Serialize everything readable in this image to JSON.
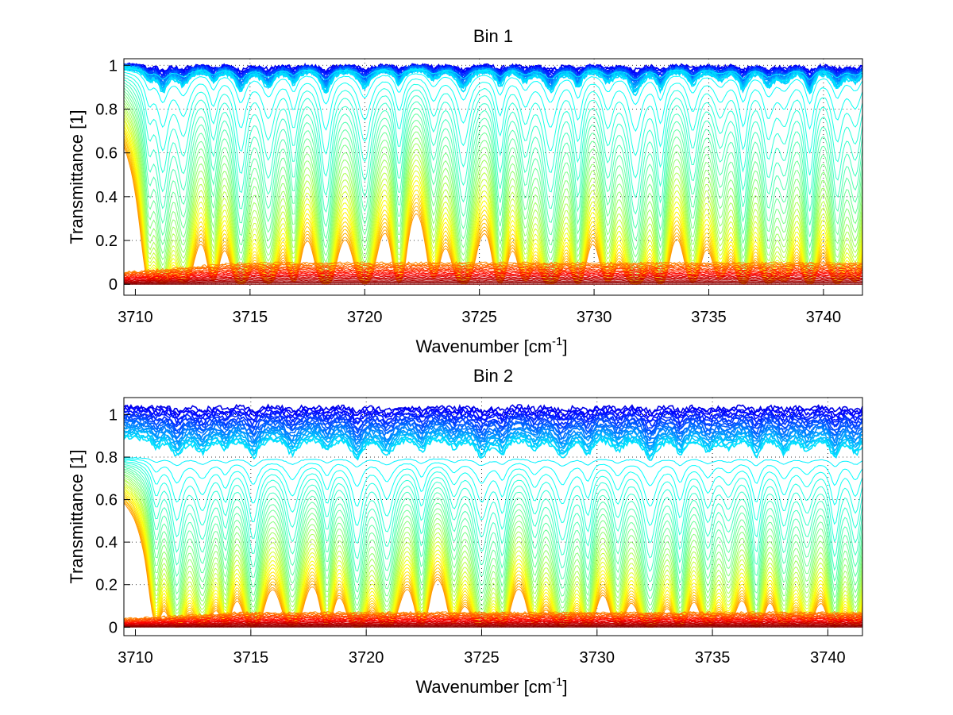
{
  "chart_data": [
    {
      "type": "line",
      "title": "Bin 1",
      "xlabel": "Wavenumber [cm",
      "xlabel_sup": "-1",
      "xlabel_end": "]",
      "ylabel": "Transmittance [1]",
      "xlim": [
        3709.5,
        3741.7
      ],
      "ylim": [
        -0.05,
        1.03
      ],
      "xticks": [
        "3710",
        "3715",
        "3720",
        "3725",
        "3730",
        "3735",
        "3740"
      ],
      "yticks": [
        "0",
        "0.2",
        "0.4",
        "0.6",
        "0.8",
        "1"
      ],
      "grid": "dotted",
      "colormap": "jet",
      "series_count": 70,
      "baseline_max": 1.0,
      "ramp_start": 0.02,
      "ramp_end": 0.1,
      "noise": 0.012,
      "absorption_lines": [
        3710.6,
        3711.2,
        3712.1,
        3713.4,
        3714.6,
        3715.8,
        3716.9,
        3718.3,
        3720.0,
        3721.5,
        3723.0,
        3724.3,
        3725.9,
        3727.0,
        3728.1,
        3729.3,
        3730.6,
        3731.8,
        3732.9,
        3734.3,
        3735.5,
        3736.5,
        3737.6,
        3738.3,
        3739.4,
        3740.6,
        3741.4
      ]
    },
    {
      "type": "line",
      "title": "Bin 2",
      "xlabel": "Wavenumber [cm",
      "xlabel_sup": "-1",
      "xlabel_end": "]",
      "ylabel": "Transmittance [1]",
      "xlim": [
        3709.5,
        3741.5
      ],
      "ylim": [
        -0.04,
        1.08
      ],
      "xticks": [
        "3710",
        "3715",
        "3720",
        "3725",
        "3730",
        "3735",
        "3740"
      ],
      "yticks": [
        "0",
        "0.2",
        "0.4",
        "0.6",
        "0.8",
        "1"
      ],
      "grid": "dotted",
      "colormap": "jet",
      "series_count": 70,
      "baseline_max": 1.04,
      "ramp_start": 0.01,
      "ramp_end": 0.07,
      "noise": 0.012,
      "absorption_lines": [
        3710.9,
        3711.8,
        3712.9,
        3713.9,
        3715.1,
        3716.8,
        3718.3,
        3719.6,
        3720.9,
        3722.4,
        3723.8,
        3725.0,
        3725.9,
        3727.3,
        3728.5,
        3729.6,
        3730.9,
        3732.3,
        3733.6,
        3734.8,
        3735.7,
        3736.9,
        3738.1,
        3739.1,
        3740.3,
        3741.2
      ]
    }
  ]
}
